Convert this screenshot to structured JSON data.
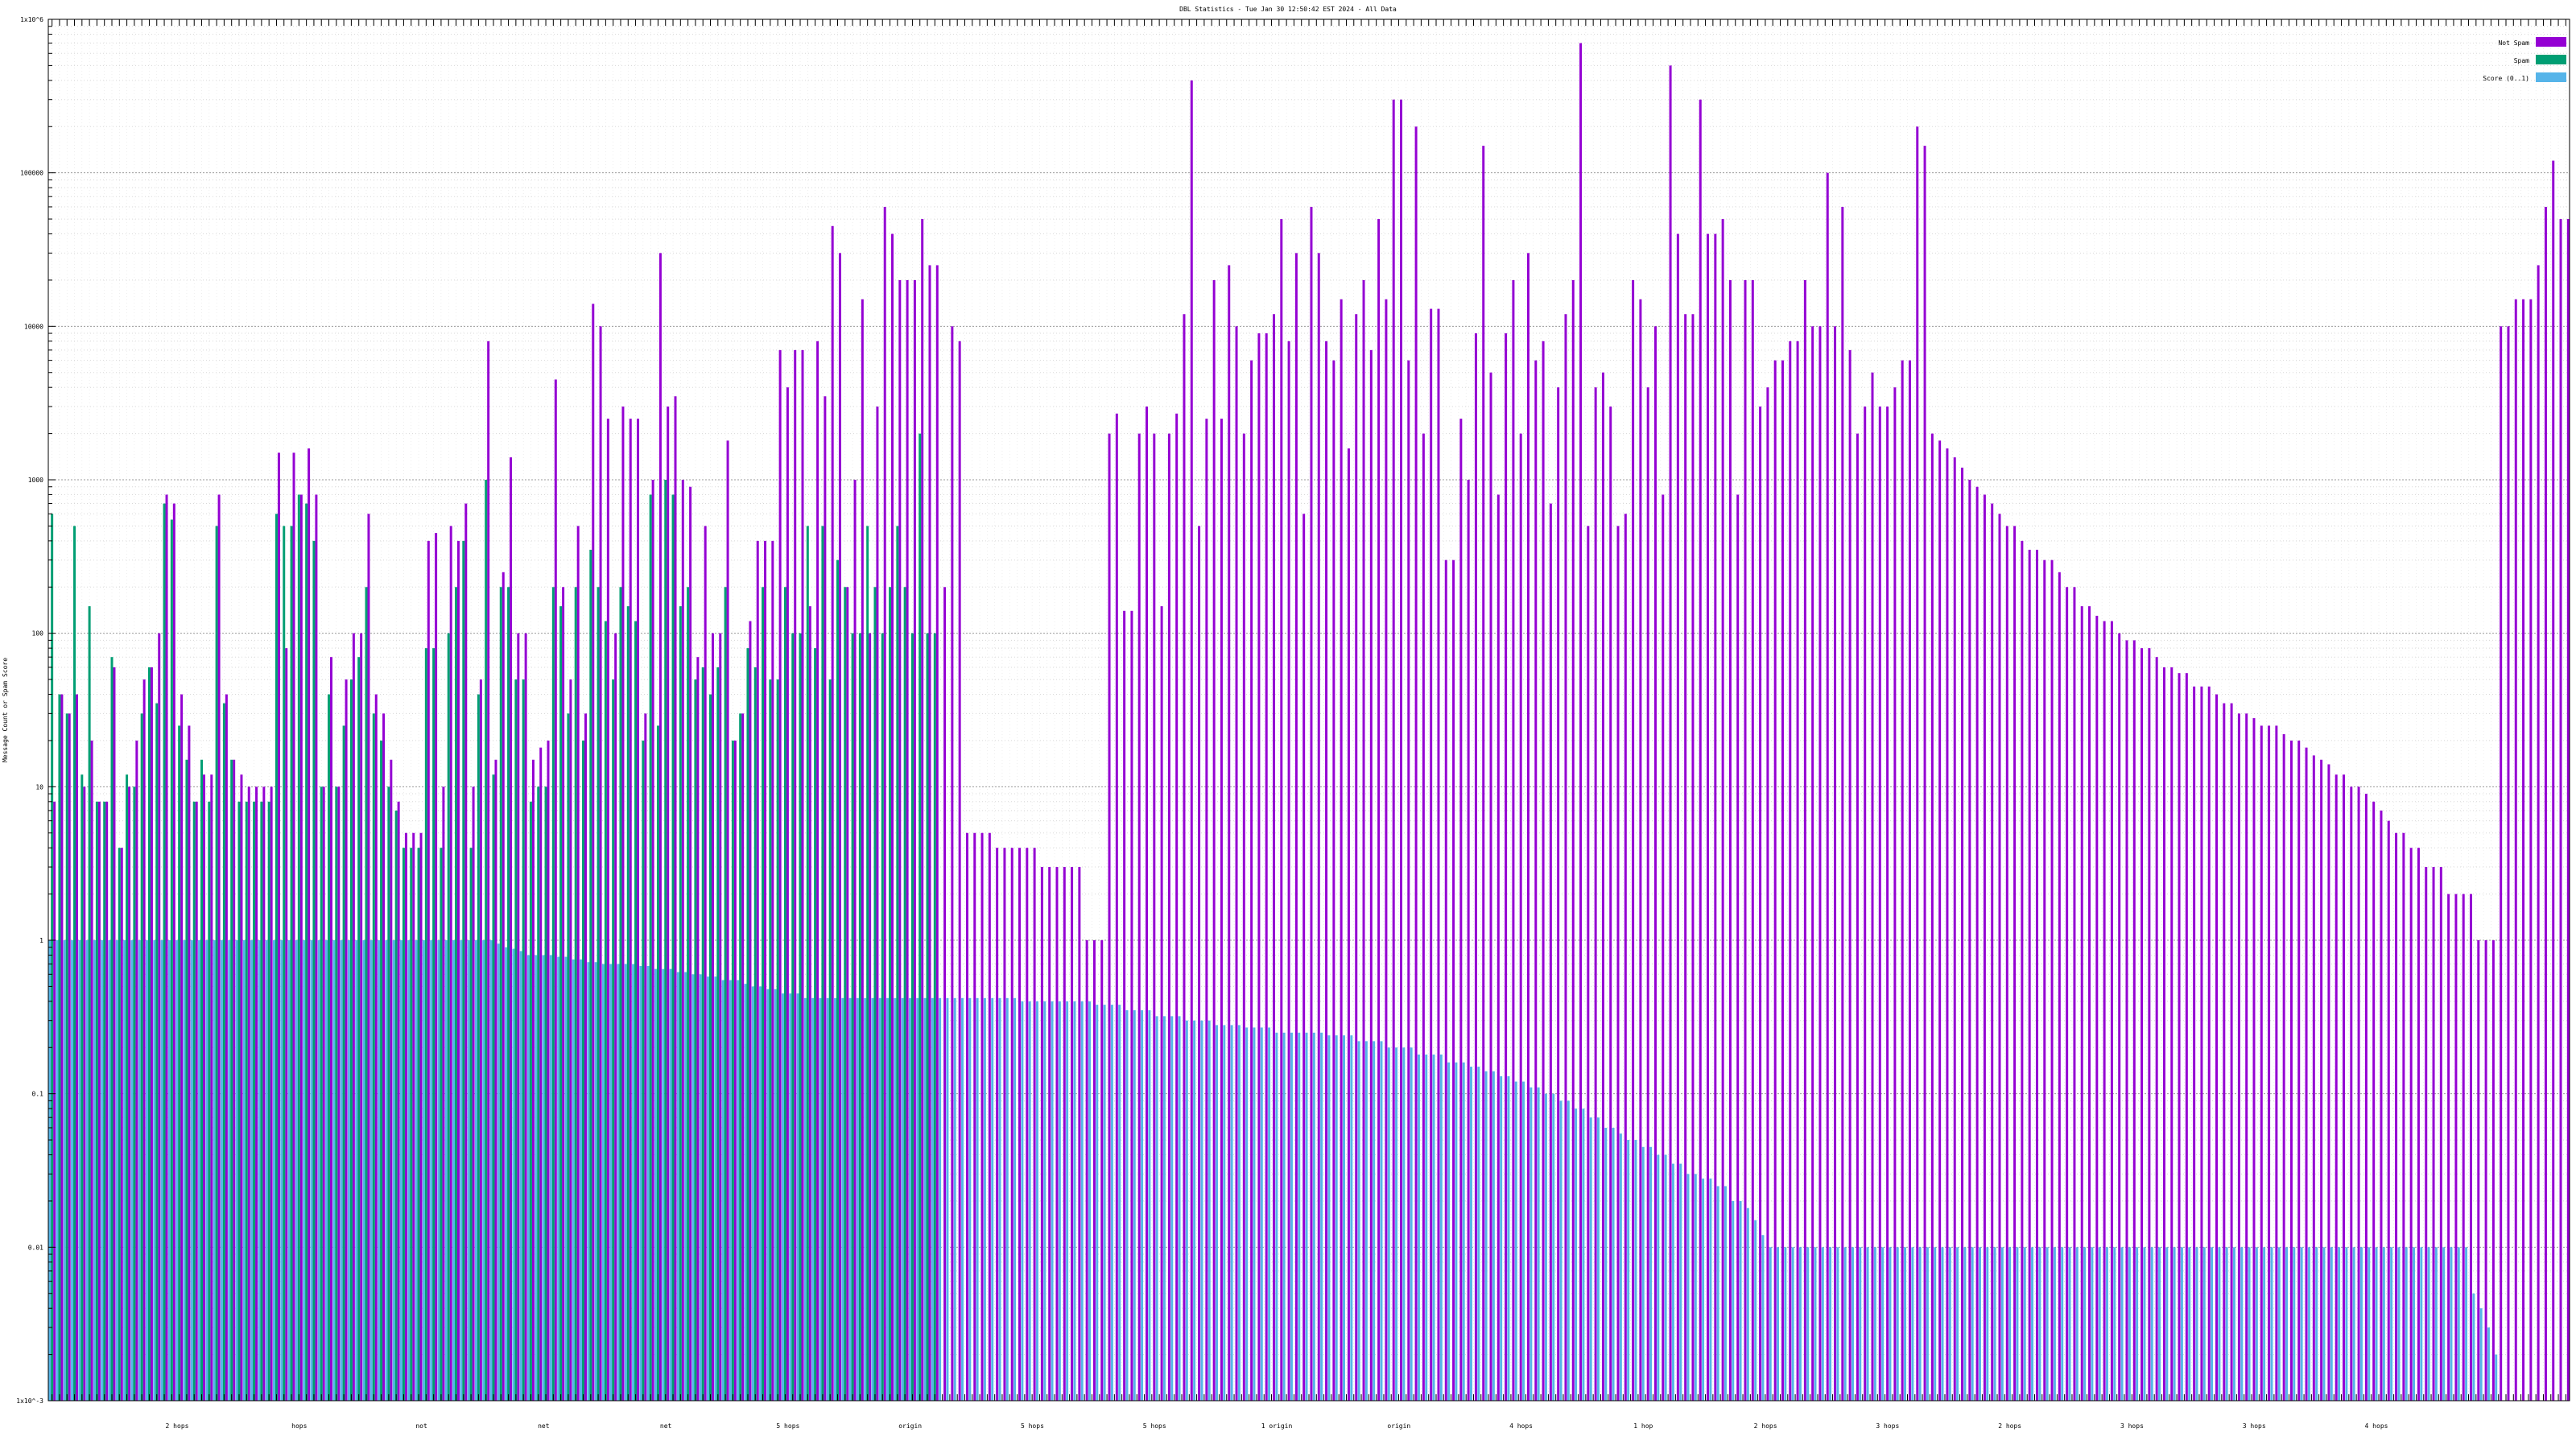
{
  "chart_data": {
    "type": "bar",
    "title": "DBL Statistics - Tue Jan 30 12:50:42 EST 2024 - All Data",
    "ylabel": "Message Count or Spam Score",
    "xlabel": "",
    "y_scale": "log",
    "ylim": [
      0.001,
      1000000
    ],
    "y_ticks": [
      "1x10^-3",
      "0.01",
      "0.1",
      "1",
      "10",
      "100",
      "1000",
      "10000",
      "100000",
      "1x10^6"
    ],
    "grid": true,
    "legend_position": "top-right",
    "colors": {
      "Not Spam": "#9400d3",
      "Spam": "#009e73",
      "Score": "#56b4e9"
    },
    "x_tick_labels_legible": [
      "2 hops",
      "hops",
      "not",
      "net",
      "net",
      "5 hops",
      "origin",
      "5 hops",
      "5 hops",
      "1 origin",
      "origin",
      "4 hops",
      "1 hop",
      "2 hops",
      "3 hops",
      "2 hops",
      "3 hops",
      "3 hops",
      "4 hops"
    ],
    "series": [
      {
        "name": "Not Spam",
        "values": [
          8,
          40,
          30,
          40,
          10,
          20,
          8,
          8,
          60,
          4,
          10,
          20,
          50,
          60,
          100,
          800,
          700,
          40,
          25,
          8,
          12,
          12,
          800,
          40,
          15,
          12,
          10,
          10,
          10,
          10,
          1500,
          80,
          1500,
          800,
          1600,
          800,
          10,
          70,
          10,
          50,
          100,
          100,
          600,
          40,
          30,
          15,
          8,
          5,
          5,
          5,
          400,
          450,
          10,
          500,
          400,
          700,
          10,
          50,
          8000,
          15,
          250,
          1400,
          100,
          100,
          15,
          18,
          20,
          4500,
          200,
          50,
          500,
          30,
          14000,
          10000,
          2500,
          100,
          3000,
          2500,
          2500,
          30,
          1000,
          30000,
          3000,
          3500,
          1000,
          900,
          70,
          500,
          100,
          100,
          1800,
          20,
          30,
          120,
          400,
          400,
          400,
          7000,
          4000,
          7000,
          7000,
          150,
          8000,
          3500,
          45000,
          30000,
          200,
          1000,
          15000,
          100,
          3000,
          60000,
          40000,
          20000,
          20000,
          20000,
          50000,
          25000,
          25000,
          200,
          10000,
          8000,
          5,
          5,
          5,
          5,
          4,
          4,
          4,
          4,
          4,
          4,
          3,
          3,
          3,
          3,
          3,
          3,
          1,
          1,
          1,
          2000,
          2700,
          140,
          140,
          2000,
          3000,
          2000,
          150,
          2000,
          2700,
          12000,
          400000,
          500,
          2500,
          20000,
          2500,
          25000,
          10000,
          2000,
          6000,
          9000,
          9000,
          12000,
          50000,
          8000,
          30000,
          600,
          60000,
          30000,
          8000,
          6000,
          15000,
          1600,
          12000,
          20000,
          7000,
          50000,
          15000,
          300000,
          300000,
          6000,
          200000,
          2000,
          13000,
          13000,
          300,
          300,
          2500,
          1000,
          9000,
          150000,
          5000,
          800,
          9000,
          20000,
          2000,
          30000,
          6000,
          8000,
          700,
          4000,
          12000,
          20000,
          700000,
          500,
          4000,
          5000,
          3000,
          500,
          600,
          20000,
          15000,
          4000,
          10000,
          800,
          500000,
          40000,
          12000,
          12000,
          300000,
          40000,
          40000,
          50000,
          20000,
          800,
          20000,
          20000,
          3000,
          4000,
          6000,
          6000,
          8000,
          8000,
          20000,
          10000,
          10000,
          100000,
          10000,
          60000,
          7000,
          2000,
          3000,
          5000,
          3000,
          3000,
          4000,
          6000,
          6000,
          200000,
          150000,
          2000,
          1800,
          1600,
          1400,
          1200,
          1000,
          900,
          800,
          700,
          600,
          500,
          500,
          400,
          350,
          350,
          300,
          300,
          250,
          200,
          200,
          150,
          150,
          130,
          120,
          120,
          100,
          90,
          90,
          80,
          80,
          70,
          60,
          60,
          55,
          55,
          45,
          45,
          45,
          40,
          35,
          35,
          30,
          30,
          28,
          25,
          25,
          25,
          22,
          20,
          20,
          18,
          16,
          15,
          14,
          12,
          12,
          10,
          10,
          9,
          8,
          7,
          6,
          5,
          5,
          4,
          4,
          3,
          3,
          3,
          2,
          2,
          2,
          2,
          1,
          1,
          1,
          10000,
          10000,
          15000,
          15000,
          15000,
          25000,
          60000,
          120000,
          50000,
          50000
        ]
      },
      {
        "name": "Spam",
        "values": [
          600,
          40,
          30,
          500,
          12,
          150,
          8,
          8,
          70,
          4,
          12,
          10,
          30,
          60,
          35,
          700,
          550,
          25,
          15,
          8,
          15,
          8,
          500,
          35,
          15,
          8,
          8,
          8,
          8,
          8,
          600,
          500,
          500,
          800,
          700,
          400,
          10,
          40,
          10,
          25,
          50,
          70,
          200,
          30,
          20,
          10,
          7,
          4,
          4,
          4,
          80,
          80,
          4,
          100,
          200,
          400,
          4,
          40,
          1000,
          12,
          200,
          200,
          50,
          50,
          8,
          10,
          10,
          200,
          150,
          30,
          200,
          20,
          350,
          200,
          120,
          50,
          200,
          150,
          120,
          20,
          800,
          25,
          1000,
          800,
          150,
          200,
          50,
          60,
          40,
          60,
          200,
          20,
          30,
          80,
          60,
          200,
          50,
          50,
          200,
          100,
          100,
          500,
          80,
          500,
          50,
          300,
          200,
          100,
          100,
          500,
          200,
          100,
          200,
          500,
          200,
          100,
          2000,
          100,
          100
        ],
        "note": ""
      },
      {
        "name": "Score (0..1)",
        "values": [
          1,
          1,
          1,
          1,
          1,
          1,
          1,
          1,
          1,
          1,
          1,
          1,
          1,
          1,
          1,
          1,
          1,
          1,
          1,
          1,
          1,
          1,
          1,
          1,
          1,
          1,
          1,
          1,
          1,
          1,
          1,
          1,
          1,
          1,
          1,
          1,
          1,
          1,
          1,
          1,
          1,
          1,
          1,
          1,
          1,
          1,
          1,
          1,
          1,
          1,
          1,
          1,
          1,
          1,
          1,
          1,
          1,
          1,
          1,
          1,
          0.95,
          0.9,
          0.88,
          0.85,
          0.8,
          0.8,
          0.8,
          0.8,
          0.78,
          0.78,
          0.75,
          0.75,
          0.72,
          0.72,
          0.7,
          0.7,
          0.7,
          0.7,
          0.7,
          0.68,
          0.68,
          0.65,
          0.65,
          0.65,
          0.62,
          0.62,
          0.6,
          0.6,
          0.58,
          0.58,
          0.55,
          0.55,
          0.55,
          0.52,
          0.5,
          0.5,
          0.48,
          0.48,
          0.45,
          0.45,
          0.45,
          0.42,
          0.42,
          0.42,
          0.42,
          0.42,
          0.42,
          0.42,
          0.42,
          0.42,
          0.42,
          0.42,
          0.42,
          0.42,
          0.42,
          0.42,
          0.42,
          0.42,
          0.42,
          0.42,
          0.42,
          0.42,
          0.42,
          0.42,
          0.42,
          0.42,
          0.42,
          0.42,
          0.42,
          0.42,
          0.4,
          0.4,
          0.4,
          0.4,
          0.4,
          0.4,
          0.4,
          0.4,
          0.4,
          0.4,
          0.38,
          0.38,
          0.38,
          0.38,
          0.35,
          0.35,
          0.35,
          0.35,
          0.32,
          0.32,
          0.32,
          0.32,
          0.3,
          0.3,
          0.3,
          0.3,
          0.28,
          0.28,
          0.28,
          0.28,
          0.27,
          0.27,
          0.27,
          0.27,
          0.25,
          0.25,
          0.25,
          0.25,
          0.25,
          0.25,
          0.25,
          0.24,
          0.24,
          0.24,
          0.24,
          0.22,
          0.22,
          0.22,
          0.22,
          0.2,
          0.2,
          0.2,
          0.2,
          0.18,
          0.18,
          0.18,
          0.18,
          0.16,
          0.16,
          0.16,
          0.15,
          0.15,
          0.14,
          0.14,
          0.13,
          0.13,
          0.12,
          0.12,
          0.11,
          0.11,
          0.1,
          0.1,
          0.09,
          0.09,
          0.08,
          0.08,
          0.07,
          0.07,
          0.06,
          0.06,
          0.055,
          0.05,
          0.05,
          0.045,
          0.045,
          0.04,
          0.04,
          0.035,
          0.035,
          0.03,
          0.03,
          0.028,
          0.028,
          0.025,
          0.025,
          0.02,
          0.02,
          0.018,
          0.015,
          0.012,
          0.01,
          0.01,
          0.01,
          0.01,
          0.01,
          0.01,
          0.01,
          0.01,
          0.01,
          0.01,
          0.01,
          0.01,
          0.01,
          0.01,
          0.01,
          0.01,
          0.01,
          0.01,
          0.01,
          0.01,
          0.01,
          0.01,
          0.01,
          0.01,
          0.01,
          0.01,
          0.01,
          0.01,
          0.01,
          0.01,
          0.01,
          0.01,
          0.01,
          0.01,
          0.01,
          0.01,
          0.01,
          0.01,
          0.01,
          0.01,
          0.01,
          0.01,
          0.01,
          0.01,
          0.01,
          0.01,
          0.01,
          0.01,
          0.01,
          0.01,
          0.01,
          0.01,
          0.01,
          0.01,
          0.01,
          0.01,
          0.01,
          0.01,
          0.01,
          0.01,
          0.01,
          0.01,
          0.01,
          0.01,
          0.01,
          0.01,
          0.01,
          0.01,
          0.01,
          0.01,
          0.01,
          0.01,
          0.01,
          0.01,
          0.01,
          0.01,
          0.01,
          0.01,
          0.01,
          0.01,
          0.01,
          0.01,
          0.01,
          0.01,
          0.01,
          0.01,
          0.01,
          0.01,
          0.01,
          0.01,
          0.01,
          0.01,
          0.01,
          0.01,
          0.005,
          0.004,
          0.003,
          0.002
        ]
      }
    ]
  }
}
